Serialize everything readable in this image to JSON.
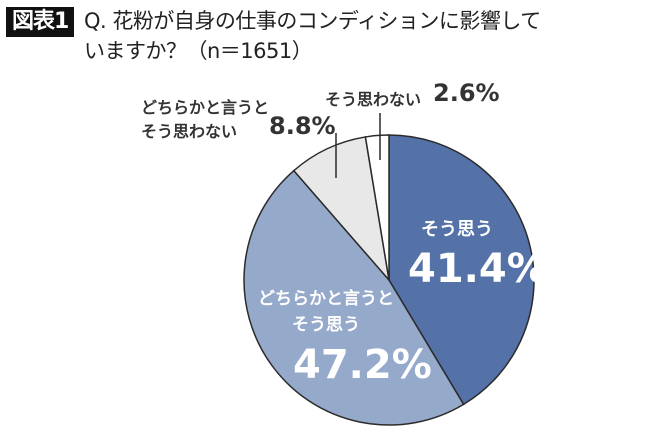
{
  "header": {
    "badge": "図表1",
    "question_line1": "Q. 花粉が自身の仕事のコンディションに影響して",
    "question_line2": "いますか？（n＝1651）"
  },
  "colors": {
    "agree": "#5472A8",
    "somewhat_agree": "#95A9CB",
    "somewhat_disagree": "#E8E8E8",
    "disagree": "#FFFFFF",
    "outline": "#2B2B2B"
  },
  "chart_data": {
    "type": "pie",
    "title": "Q. 花粉が自身の仕事のコンディションに影響していますか？（n＝1651）",
    "n": 1651,
    "start_angle": "12 o'clock, clockwise",
    "categories": [
      "そう思う",
      "どちらかと言うとそう思う",
      "どちらかと言うとそう思わない",
      "そう思わない"
    ],
    "values": [
      41.4,
      47.2,
      8.8,
      2.6
    ],
    "unit": "%",
    "colors": [
      "#5472A8",
      "#95A9CB",
      "#E8E8E8",
      "#FFFFFF"
    ]
  },
  "labels": {
    "agree_name": "そう思う",
    "agree_value": "41.4%",
    "somewhat_agree_line1": "どちらかと言うと",
    "somewhat_agree_line2": "そう思う",
    "somewhat_agree_value": "47.2%",
    "somewhat_disagree_line1": "どちらかと言うと",
    "somewhat_disagree_line2": "そう思わない",
    "somewhat_disagree_value": "8.8%",
    "disagree_name": "そう思わない",
    "disagree_value": "2.6%"
  }
}
